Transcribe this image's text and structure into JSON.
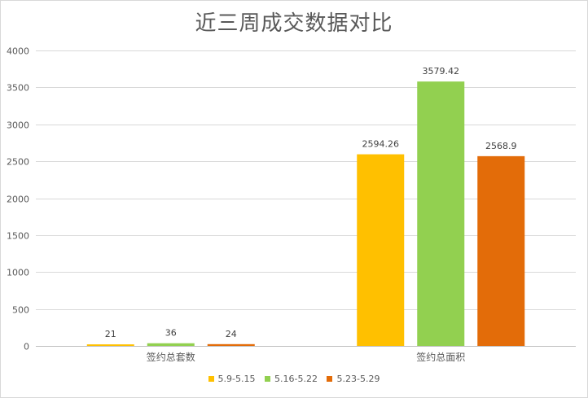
{
  "chart_data": {
    "type": "bar",
    "title": "近三周成交数据对比",
    "categories": [
      "签约总套数",
      "签约总面积"
    ],
    "series": [
      {
        "name": "5.9-5.15",
        "color": "#FFC000",
        "values": [
          21,
          2594.26
        ]
      },
      {
        "name": "5.16-5.22",
        "color": "#92D050",
        "values": [
          36,
          3579.42
        ]
      },
      {
        "name": "5.23-5.29",
        "color": "#E36C09",
        "values": [
          24,
          2568.9
        ]
      }
    ],
    "data_labels": [
      [
        "21",
        "2594.26"
      ],
      [
        "36",
        "3579.42"
      ],
      [
        "24",
        "2568.9"
      ]
    ],
    "ylim": [
      0,
      4000
    ],
    "yticks": [
      0,
      500,
      1000,
      1500,
      2000,
      2500,
      3000,
      3500,
      4000
    ],
    "grid": true,
    "legend": "bottom"
  }
}
